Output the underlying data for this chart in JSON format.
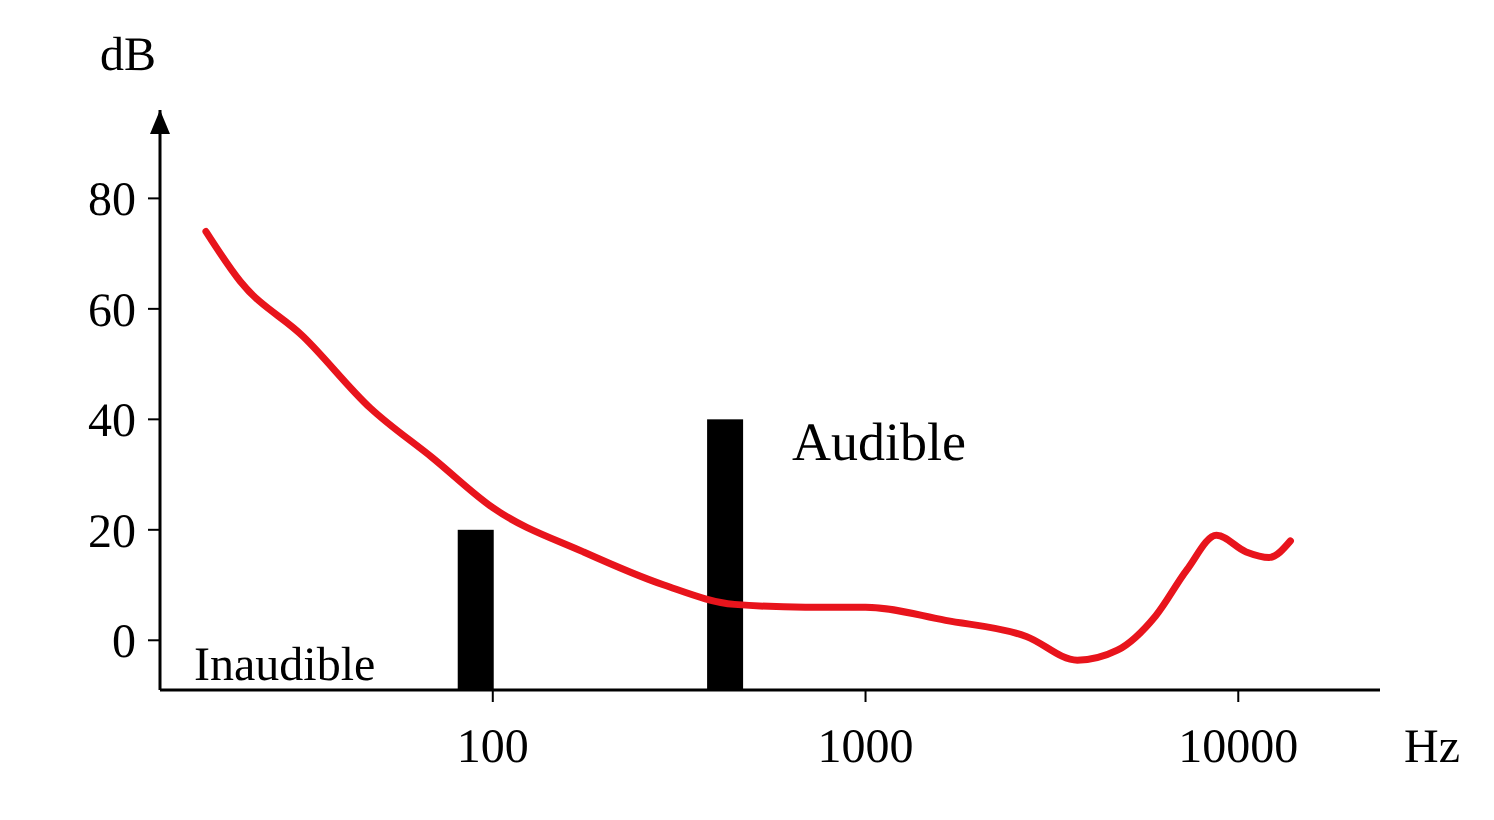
{
  "chart_data": {
    "type": "line",
    "xlabel": "Hz",
    "ylabel": "dB",
    "log": "x",
    "xlim": [
      12.8,
      24000
    ],
    "ylim": [
      -9,
      96
    ],
    "xticks": [
      100,
      1000,
      10000
    ],
    "yticks": [
      0,
      20,
      40,
      60,
      80
    ],
    "grid": false,
    "marker": "none",
    "line_style": "solid",
    "series": [
      {
        "color": "#e8141c",
        "x": [
          17,
          21,
          31,
          47,
          69,
          100,
          175,
          288,
          445,
          689,
          1000,
          1640,
          2700,
          3700,
          4740,
          6000,
          7270,
          8740,
          10500,
          12100,
          13800
        ],
        "values": [
          74,
          65,
          55,
          42,
          33,
          24,
          16,
          10,
          6.5,
          6,
          6,
          3.6,
          0.7,
          -3.6,
          -1.8,
          4.4,
          12.7,
          19,
          16,
          15,
          18
        ]
      },
      {
        "type": "bar",
        "color": "#000000",
        "x": [
          90,
          420
        ],
        "base": [
          -9,
          -9
        ],
        "values": [
          29,
          49
        ]
      }
    ],
    "annotations": [
      "Inaudible",
      "Audible"
    ]
  }
}
